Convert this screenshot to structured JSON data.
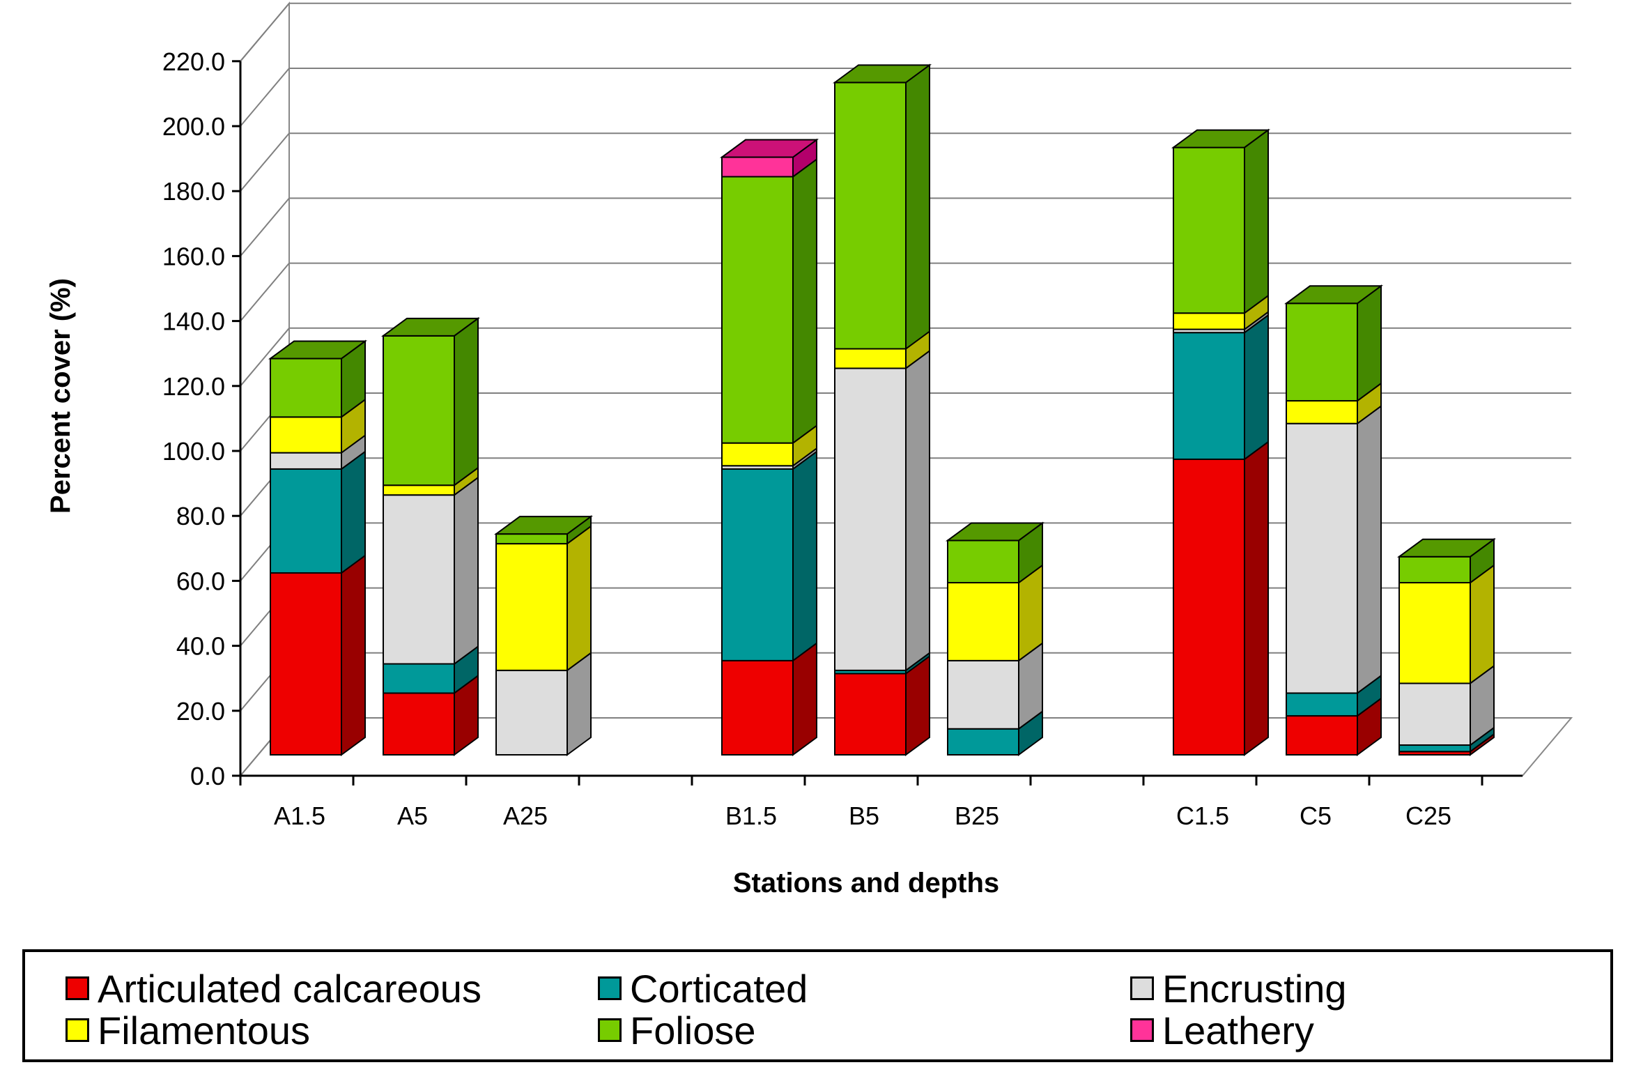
{
  "chart_data": {
    "type": "bar",
    "stacked": true,
    "three_d": true,
    "title": "",
    "xlabel": "Stations and depths",
    "ylabel": "Percent cover (%)",
    "ylim": [
      0,
      220
    ],
    "ytick_step": 20,
    "ytick_labels": [
      "0.0",
      "20.0",
      "40.0",
      "60.0",
      "80.0",
      "100.0",
      "120.0",
      "140.0",
      "160.0",
      "180.0",
      "200.0",
      "220.0"
    ],
    "grid": true,
    "legend_position": "bottom",
    "categories": [
      "A1.5",
      "A5",
      "A25",
      "B1.5",
      "B5",
      "B25",
      "C1.5",
      "C5",
      "C25"
    ],
    "slots": [
      0,
      1,
      2,
      4,
      5,
      6,
      8,
      9,
      10
    ],
    "series": [
      {
        "name": "Articulated calcareous",
        "color": "#ee0000",
        "side": "#990000",
        "top": "#aa0000",
        "values": [
          56,
          19,
          0,
          29,
          25,
          0,
          91,
          12,
          1
        ]
      },
      {
        "name": "Corticated",
        "color": "#009999",
        "side": "#006666",
        "top": "#007777",
        "values": [
          32,
          9,
          0,
          59,
          1,
          8,
          39,
          7,
          2
        ]
      },
      {
        "name": "Encrusting",
        "color": "#dddddd",
        "side": "#999999",
        "top": "#bbbbbb",
        "values": [
          5,
          52,
          26,
          1,
          93,
          21,
          1,
          83,
          19
        ]
      },
      {
        "name": "Filamentous",
        "color": "#ffff00",
        "side": "#b3b300",
        "top": "#cccc00",
        "values": [
          11,
          3,
          39,
          7,
          6,
          24,
          5,
          7,
          31
        ]
      },
      {
        "name": "Foliose",
        "color": "#77cc00",
        "side": "#448800",
        "top": "#559900",
        "values": [
          18,
          46,
          3,
          82,
          82,
          13,
          51,
          30,
          8
        ]
      },
      {
        "name": "Leathery",
        "color": "#ff3399",
        "side": "#b3006b",
        "top": "#cc1177",
        "values": [
          0,
          0,
          0,
          6,
          0,
          0,
          0,
          0,
          0
        ]
      }
    ]
  },
  "legend": {
    "items": [
      {
        "label": "Articulated calcareous",
        "color": "#ee0000"
      },
      {
        "label": "Corticated",
        "color": "#009999"
      },
      {
        "label": "Encrusting",
        "color": "#dddddd"
      },
      {
        "label": "Filamentous",
        "color": "#ffff00"
      },
      {
        "label": "Foliose",
        "color": "#77cc00"
      },
      {
        "label": "Leathery",
        "color": "#ff3399"
      }
    ]
  }
}
